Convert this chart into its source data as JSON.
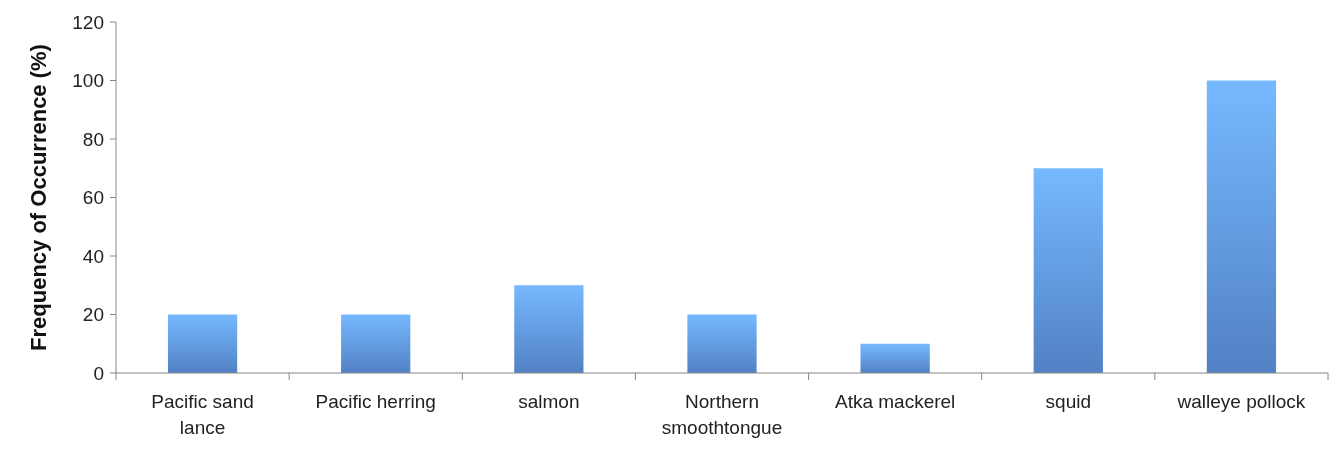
{
  "chart_data": {
    "type": "bar",
    "ylabel": "Frequency of Occurrence (%)",
    "categories": [
      "Pacific sand lance",
      "Pacific herring",
      "salmon",
      "Northern smoothtongue",
      "Atka mackerel",
      "squid",
      "walleye pollock"
    ],
    "values": [
      20,
      20,
      30,
      20,
      10,
      70,
      100
    ],
    "color": "#5f95e2",
    "ylim": [
      0,
      120
    ],
    "yticks": [
      0,
      20,
      40,
      60,
      80,
      100,
      120
    ],
    "grid": false
  }
}
